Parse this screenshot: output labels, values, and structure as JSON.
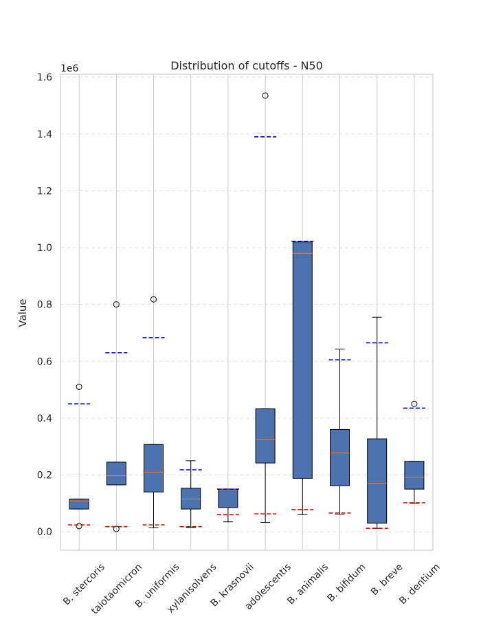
{
  "chart_data": {
    "type": "box",
    "title": "Distribution of cutoffs - N50",
    "ylabel": "Value",
    "y_offset_label": "1e6",
    "ylim": [
      -65000,
      1610000
    ],
    "yticks": [
      0.0,
      0.2,
      0.4,
      0.6,
      0.8,
      1.0,
      1.2,
      1.4,
      1.6
    ],
    "grid": true,
    "box_color": "#4c72b0",
    "median_color": "#dd8452",
    "upper_marker_color": "#0000cc",
    "lower_marker_color": "#dd0000",
    "categories": [
      "B. stercoris",
      "B. faecis_kutaiotaomicron",
      "B. uniformis",
      "B. xylanisolvens",
      "B. krasnovii",
      "B. adolescentis",
      "B. animalis",
      "B. bifidum",
      "B. breve",
      "B. dentium"
    ],
    "category_labels": [
      "B. stercoris",
      "taiotaomicron",
      "B. uniformis",
      "xylanisolvens",
      "B. krasnovii",
      "adolescentis",
      "B. animalis",
      "B. bifidum",
      "B. breve",
      "B. dentium"
    ],
    "boxes": [
      {
        "whislo": 80000,
        "q1": 80000,
        "med": 108000,
        "q3": 115000,
        "whishi": 115000,
        "fliers": [
          20000,
          510000
        ],
        "upper_cutoff": 450000,
        "lower_cutoff": 24000
      },
      {
        "whislo": 165000,
        "q1": 165000,
        "med": 197000,
        "q3": 245000,
        "whishi": 245000,
        "fliers": [
          10000,
          800000
        ],
        "upper_cutoff": 630000,
        "lower_cutoff": 18000
      },
      {
        "whislo": 14000,
        "q1": 140000,
        "med": 210000,
        "q3": 307000,
        "whishi": 307000,
        "fliers": [
          818000
        ],
        "upper_cutoff": 683000,
        "lower_cutoff": 24000
      },
      {
        "whislo": 15000,
        "q1": 80000,
        "med": 115000,
        "q3": 153000,
        "whishi": 250000,
        "fliers": [],
        "upper_cutoff": 218000,
        "lower_cutoff": 18000
      },
      {
        "whislo": 35000,
        "q1": 85000,
        "med": 148000,
        "q3": 150000,
        "whishi": 150000,
        "fliers": [],
        "upper_cutoff": 150000,
        "lower_cutoff": 60000
      },
      {
        "whislo": 33000,
        "q1": 242000,
        "med": 325000,
        "q3": 433000,
        "whishi": 433000,
        "fliers": [
          1535000
        ],
        "upper_cutoff": 1390000,
        "lower_cutoff": 63000
      },
      {
        "whislo": 60000,
        "q1": 188000,
        "med": 980000,
        "q3": 1020000,
        "whishi": 1020000,
        "fliers": [],
        "upper_cutoff": 1022000,
        "lower_cutoff": 78000
      },
      {
        "whislo": 62000,
        "q1": 162000,
        "med": 277000,
        "q3": 360000,
        "whishi": 643000,
        "fliers": [],
        "upper_cutoff": 605000,
        "lower_cutoff": 66000
      },
      {
        "whislo": 12000,
        "q1": 30000,
        "med": 170000,
        "q3": 327000,
        "whishi": 755000,
        "fliers": [],
        "upper_cutoff": 665000,
        "lower_cutoff": 12000
      },
      {
        "whislo": 100000,
        "q1": 150000,
        "med": 192000,
        "q3": 248000,
        "whishi": 248000,
        "fliers": [
          450000
        ],
        "upper_cutoff": 435000,
        "lower_cutoff": 102000
      }
    ]
  }
}
